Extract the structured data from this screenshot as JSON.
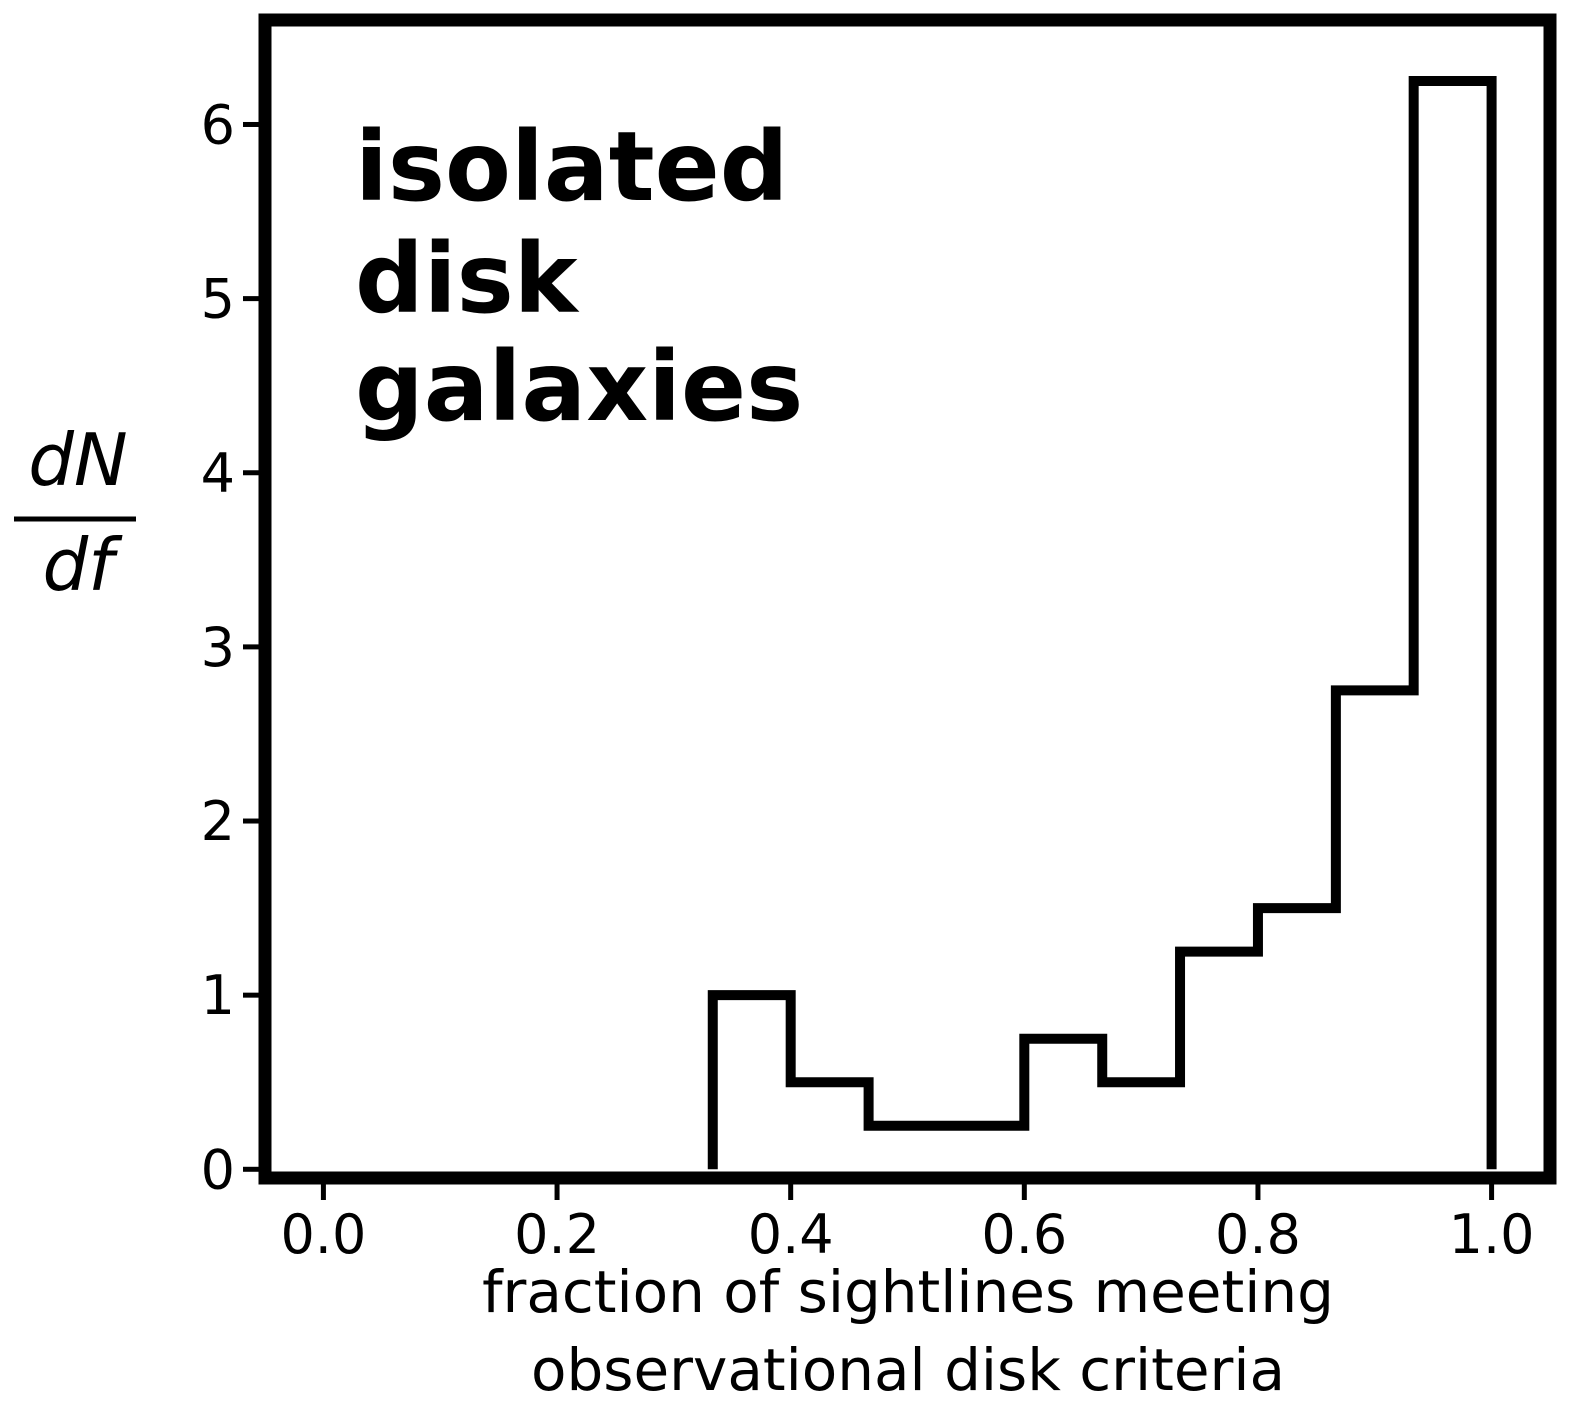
{
  "chart_data": {
    "type": "histogram-step",
    "bin_edges": [
      0.3333,
      0.4,
      0.4667,
      0.6,
      0.6667,
      0.7333,
      0.8,
      0.8667,
      0.9333,
      1.0
    ],
    "values": [
      1.0,
      0.5,
      0.25,
      0.75,
      0.5,
      1.25,
      1.5,
      2.75,
      6.25
    ],
    "xlim": [
      -0.05,
      1.05
    ],
    "ylim": [
      -0.05,
      6.6
    ],
    "xticks": [
      "0.0",
      "0.2",
      "0.4",
      "0.6",
      "0.8",
      "1.0"
    ],
    "yticks": [
      "0",
      "1",
      "2",
      "3",
      "4",
      "5",
      "6"
    ],
    "xlabel": [
      "fraction of sightlines meeting",
      "observational disk criteria"
    ],
    "ylabel": {
      "numerator": "dN",
      "denominator": "df"
    },
    "annotation": [
      "isolated",
      "disk",
      "galaxies"
    ],
    "line_color": "#000000",
    "grid": false
  }
}
